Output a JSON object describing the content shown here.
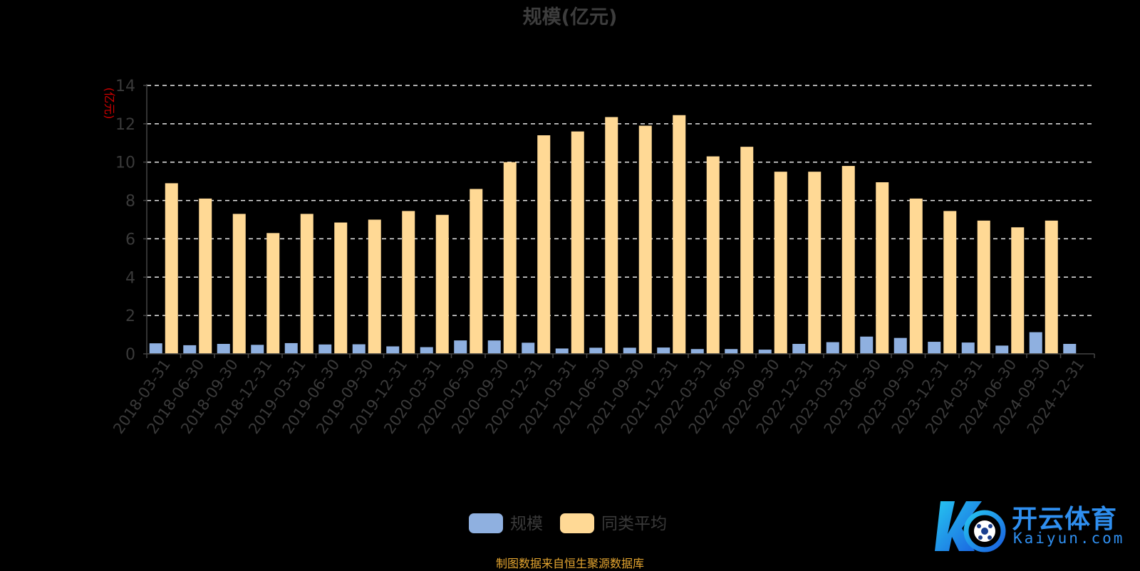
{
  "chart_data": {
    "type": "bar",
    "title": "规模(亿元)",
    "ylabel": "(亿元)",
    "ylim": [
      0,
      14
    ],
    "yticks": [
      "0",
      "2",
      "4",
      "6",
      "8",
      "10",
      "12",
      "14"
    ],
    "grid": true,
    "legend_position": "bottom",
    "categories": [
      "2018-03-31",
      "2018-06-30",
      "2018-09-30",
      "2018-12-31",
      "2019-03-31",
      "2019-06-30",
      "2019-09-30",
      "2019-12-31",
      "2020-03-31",
      "2020-06-30",
      "2020-09-30",
      "2020-12-31",
      "2021-03-31",
      "2021-06-30",
      "2021-09-30",
      "2021-12-31",
      "2022-03-31",
      "2022-06-30",
      "2022-09-30",
      "2022-12-31",
      "2023-03-31",
      "2023-06-30",
      "2023-09-30",
      "2023-12-31",
      "2024-03-31",
      "2024-06-30",
      "2024-09-30",
      "2024-12-31"
    ],
    "series": [
      {
        "name": "规模",
        "color": "#8fb0e0",
        "values": [
          0.55,
          0.45,
          0.52,
          0.47,
          0.56,
          0.49,
          0.5,
          0.39,
          0.35,
          0.7,
          0.7,
          0.58,
          0.28,
          0.32,
          0.32,
          0.33,
          0.25,
          0.25,
          0.22,
          0.52,
          0.61,
          0.9,
          0.83,
          0.63,
          0.59,
          0.43,
          1.13,
          0.52
        ]
      },
      {
        "name": "同类平均",
        "color": "#ffd995",
        "values": [
          8.9,
          8.1,
          7.3,
          6.3,
          7.3,
          6.85,
          7.0,
          7.45,
          7.25,
          8.6,
          10.0,
          11.4,
          11.6,
          12.35,
          11.9,
          12.45,
          10.3,
          10.8,
          9.5,
          9.5,
          9.8,
          8.95,
          8.1,
          7.45,
          6.95,
          6.6,
          6.95,
          null
        ]
      }
    ]
  },
  "colors": {
    "background": "#000000",
    "title": "#3d3d3d",
    "axis_text": "#3a3a3a",
    "ylabel": "#d00000",
    "grid": "#e8e8e8",
    "source_text": "#e4a530",
    "watermark": "#2f8ff0"
  },
  "watermark": {
    "cn": "开云体育",
    "en": "Kaiyun.com"
  },
  "source_note": "制图数据来自恒生聚源数据库"
}
